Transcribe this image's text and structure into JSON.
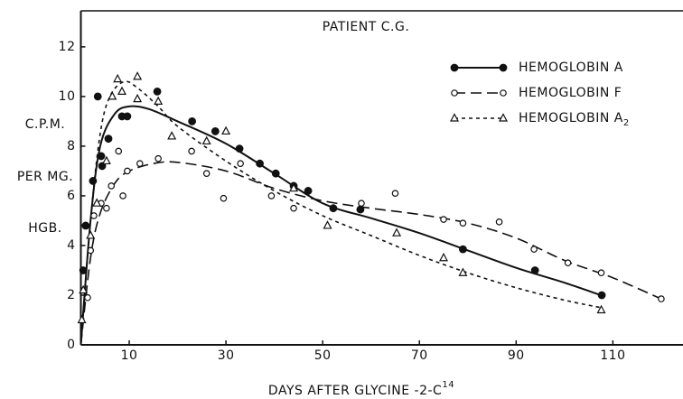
{
  "chart_data": {
    "type": "scatter",
    "title": "PATIENT C.G.",
    "x_label": "DAYS AFTER GLYCINE -2-C",
    "x_label_sup": "14",
    "y_label_lines": [
      "C.P.M.",
      "PER MG.",
      "HGB."
    ],
    "xlim": [
      0,
      124.5
    ],
    "ylim": [
      0,
      13.45
    ],
    "xticks": [
      10,
      30,
      50,
      70,
      90,
      110
    ],
    "yticks": [
      0,
      2,
      4,
      6,
      8,
      10,
      12
    ],
    "legend": "upper right",
    "series": [
      {
        "name": "HEMOGLOBIN A",
        "color": "#111111",
        "marker": "filled-circle",
        "line": "solid",
        "x": [
          0.5,
          1,
          2.5,
          3.5,
          4.2,
          4.4,
          5.7,
          8.5,
          9.6,
          15.8,
          23,
          27.8,
          32.8,
          37,
          40.3,
          44,
          47,
          52.2,
          57.8,
          79,
          93.9,
          107.7
        ],
        "values": [
          3,
          4.8,
          6.6,
          10,
          7.6,
          7.2,
          8.3,
          9.2,
          9.2,
          10.2,
          9,
          8.6,
          7.9,
          7.3,
          6.9,
          6.4,
          6.2,
          5.5,
          5.45,
          3.85,
          3,
          2
        ],
        "fit_x": [
          0,
          2,
          4,
          7,
          10,
          14,
          20,
          30,
          40,
          50,
          60,
          70,
          80,
          90,
          100,
          107.5
        ],
        "fit_values": [
          0,
          5,
          8,
          9.3,
          9.6,
          9.5,
          9,
          8.1,
          6.9,
          5.7,
          5.1,
          4.5,
          3.8,
          3.1,
          2.5,
          2
        ]
      },
      {
        "name": "HEMOGLOBIN F",
        "color": "#111111",
        "marker": "open-circle",
        "line": "dashed",
        "x": [
          1.4,
          2,
          2.7,
          4.2,
          5.3,
          6.3,
          7.8,
          8.7,
          9.6,
          12.2,
          16,
          22.9,
          26,
          29.5,
          33,
          39.4,
          44,
          58,
          65,
          75,
          79,
          86.5,
          93.7,
          100.7,
          107.6,
          120
        ],
        "values": [
          1.9,
          3.8,
          5.2,
          5.7,
          5.5,
          6.4,
          7.8,
          6,
          7,
          7.3,
          7.5,
          7.8,
          6.9,
          5.9,
          7.3,
          6,
          5.5,
          5.7,
          6.1,
          5.05,
          4.9,
          4.95,
          3.85,
          3.3,
          2.9,
          1.85
        ],
        "fit_x": [
          0,
          2,
          4,
          7,
          10,
          15,
          20,
          30,
          40,
          50,
          60,
          70,
          80,
          90,
          100,
          110,
          120
        ],
        "fit_values": [
          0,
          3.5,
          5.3,
          6.5,
          7,
          7.3,
          7.35,
          7,
          6.3,
          5.8,
          5.5,
          5.25,
          4.9,
          4.3,
          3.4,
          2.7,
          1.85
        ]
      },
      {
        "name": "HEMOGLOBIN A",
        "name_sub": "2",
        "color": "#111111",
        "marker": "open-triangle",
        "line": "dotted",
        "x": [
          0.2,
          0.5,
          2,
          3.3,
          5.3,
          6.5,
          7.6,
          8.5,
          11.7,
          11.7,
          16,
          18.8,
          26,
          30,
          44,
          51,
          65.3,
          75,
          79,
          107.6
        ],
        "values": [
          1,
          2.2,
          4.4,
          5.7,
          7.4,
          10,
          10.7,
          10.2,
          10.8,
          9.9,
          9.8,
          8.4,
          8.2,
          8.6,
          6.3,
          4.8,
          4.5,
          3.5,
          2.9,
          1.4
        ],
        "fit_x": [
          0,
          2,
          4,
          6,
          9,
          12,
          16,
          20,
          30,
          40,
          50,
          60,
          70,
          80,
          90,
          100,
          107.5
        ],
        "fit_values": [
          0,
          5,
          8.5,
          10,
          10.6,
          10.3,
          9.6,
          8.8,
          7.4,
          6.2,
          5.2,
          4.4,
          3.6,
          2.9,
          2.3,
          1.8,
          1.5
        ]
      }
    ]
  }
}
